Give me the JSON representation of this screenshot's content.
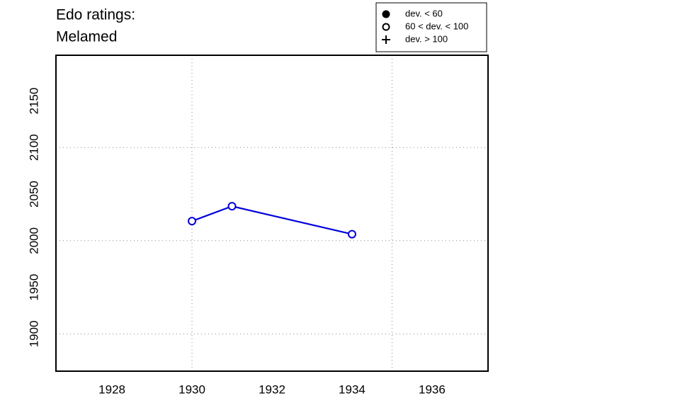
{
  "chart_data": {
    "type": "line",
    "title": [
      "Edo ratings:",
      "Melamed"
    ],
    "x": [
      1930,
      1931,
      1934
    ],
    "series": [
      {
        "color": "#0000dd",
        "marker": "open-circle",
        "values": [
          2021,
          2037,
          2007
        ]
      }
    ],
    "xlim": [
      1926.6,
      1937.4
    ],
    "ylim": [
      1860,
      2199
    ],
    "xticks": [
      1928,
      1930,
      1932,
      1934,
      1936
    ],
    "yticks": [
      1900,
      1950,
      2000,
      2050,
      2100,
      2150
    ],
    "grid_x": [
      1930,
      1935
    ],
    "grid_y": [
      1900,
      2000,
      2100
    ],
    "legend_position": "top-right",
    "legend": [
      {
        "label": "dev. < 60",
        "symbol": "filled-circle"
      },
      {
        "label": "60 < dev. < 100",
        "symbol": "open-circle"
      },
      {
        "label": "dev. > 100",
        "symbol": "plus"
      }
    ]
  }
}
